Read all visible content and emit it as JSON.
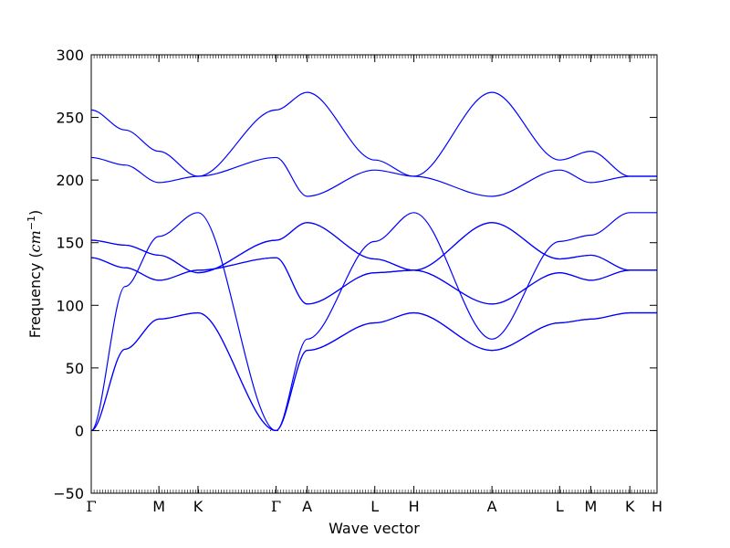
{
  "chart_data": {
    "type": "line",
    "title": "",
    "xlabel": "Wave vector",
    "ylabel": "Frequency ($cm^{-1}$)",
    "ylabel_parts": {
      "main": "Frequency (",
      "unit_base": "cm",
      "unit_exp": "−1",
      "close": ")"
    },
    "ylim": [
      -50,
      300
    ],
    "yticks": [
      -50,
      0,
      50,
      100,
      150,
      200,
      250,
      300
    ],
    "xlim": [
      0,
      1
    ],
    "high_symmetry_points": [
      {
        "label": "Γ",
        "x": 0.0
      },
      {
        "label": "M",
        "x": 0.1196
      },
      {
        "label": "K",
        "x": 0.1887
      },
      {
        "label": "Γ",
        "x": 0.3267
      },
      {
        "label": "A",
        "x": 0.3817
      },
      {
        "label": "L",
        "x": 0.5012
      },
      {
        "label": "H",
        "x": 0.5703
      },
      {
        "label": "A",
        "x": 0.7083
      },
      {
        "label": "L",
        "x": 0.8279
      },
      {
        "label": "M",
        "x": 0.8829
      },
      {
        "label": "K",
        "x": 0.952
      },
      {
        "label": "H",
        "x": 1.0
      }
    ],
    "zero_line": {
      "y": 0,
      "style": "dotted"
    },
    "grid": false,
    "series_color": "#0000ff",
    "series": [
      {
        "x": [
          0,
          0.0598,
          0.1196,
          0.1887,
          0.3267,
          0.3817,
          0.5012,
          0.5703,
          0.7083,
          0.8279,
          0.8829,
          0.952,
          1.0
        ],
        "values": [
          0,
          65,
          89,
          94,
          0,
          64,
          86,
          94,
          64,
          86,
          89,
          94,
          94
        ]
      },
      {
        "x": [
          0,
          0.0598,
          0.1196,
          0.1887,
          0.3267,
          0.3817,
          0.5012,
          0.5703,
          0.7083,
          0.8279,
          0.8829,
          0.952,
          1.0
        ],
        "values": [
          0,
          65,
          89,
          94,
          0,
          64,
          86,
          94,
          64,
          86,
          89,
          94,
          94
        ]
      },
      {
        "x": [
          0,
          0.0598,
          0.1196,
          0.1887,
          0.3267,
          0.3817,
          0.5012,
          0.5703,
          0.7083,
          0.8279,
          0.8829,
          0.952,
          1.0
        ],
        "values": [
          0,
          115,
          155,
          174,
          0,
          73,
          151,
          174,
          73,
          151,
          156,
          174,
          174
        ]
      },
      {
        "x": [
          0,
          0.0598,
          0.1196,
          0.1887,
          0.3267,
          0.3817,
          0.5012,
          0.5703,
          0.7083,
          0.8279,
          0.8829,
          0.952,
          1.0
        ],
        "values": [
          138,
          130,
          120,
          128,
          138,
          101,
          126,
          128,
          101,
          126,
          120,
          128,
          128
        ]
      },
      {
        "x": [
          0,
          0.0598,
          0.1196,
          0.1887,
          0.3267,
          0.3817,
          0.5012,
          0.5703,
          0.7083,
          0.8279,
          0.8829,
          0.952,
          1.0
        ],
        "values": [
          138,
          130,
          120,
          128,
          138,
          101,
          126,
          128,
          101,
          126,
          120,
          128,
          128
        ]
      },
      {
        "x": [
          0,
          0.0598,
          0.1196,
          0.1887,
          0.3267,
          0.3817,
          0.5012,
          0.5703,
          0.7083,
          0.8279,
          0.8829,
          0.952,
          1.0
        ],
        "values": [
          152,
          148,
          140,
          126,
          152,
          166,
          137,
          128,
          166,
          137,
          140,
          128,
          128
        ]
      },
      {
        "x": [
          0,
          0.0598,
          0.1196,
          0.1887,
          0.3267,
          0.3817,
          0.5012,
          0.5703,
          0.7083,
          0.8279,
          0.8829,
          0.952,
          1.0
        ],
        "values": [
          152,
          148,
          140,
          126,
          152,
          166,
          137,
          128,
          166,
          137,
          140,
          128,
          128
        ]
      },
      {
        "x": [
          0,
          0.0598,
          0.1196,
          0.1887,
          0.3267,
          0.3817,
          0.5012,
          0.5703,
          0.7083,
          0.8279,
          0.8829,
          0.952,
          1.0
        ],
        "values": [
          218,
          212,
          198,
          203,
          218,
          187,
          208,
          203,
          187,
          208,
          198,
          203,
          203
        ]
      },
      {
        "x": [
          0,
          0.0598,
          0.1196,
          0.1887,
          0.3267,
          0.3817,
          0.5012,
          0.5703,
          0.7083,
          0.8279,
          0.8829,
          0.952,
          1.0
        ],
        "values": [
          256,
          240,
          223,
          203,
          256,
          270,
          216,
          203,
          270,
          216,
          223,
          203,
          203
        ]
      }
    ]
  }
}
